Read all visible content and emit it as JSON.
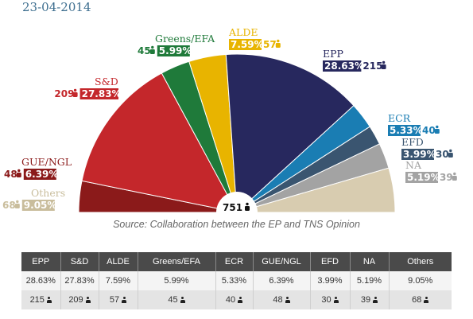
{
  "date": "23-04-2014",
  "source": "Source: Collaboration between the EP and TNS Opinion",
  "colors": {
    "GUE/NGL": "#8b1a1a",
    "S&D": "#c4272b",
    "Greens/EFA": "#1f7a3a",
    "ALDE": "#e8b400",
    "EPP": "#27285e",
    "ECR": "#1a7db3",
    "EFD": "#3a5570",
    "NA": "#a3a3a3",
    "Others": "#d8ccb0"
  },
  "chart_data": {
    "type": "pie",
    "total_seats": "751",
    "parties": [
      {
        "name": "GUE/NGL",
        "pct": "6.39%",
        "seats": "48",
        "value": 6.39
      },
      {
        "name": "S&D",
        "pct": "27.83%",
        "seats": "209",
        "value": 27.83
      },
      {
        "name": "Greens/EFA",
        "pct": "5.99%",
        "seats": "45",
        "value": 5.99
      },
      {
        "name": "ALDE",
        "pct": "7.59%",
        "seats": "57",
        "value": 7.59
      },
      {
        "name": "EPP",
        "pct": "28.63%",
        "seats": "215",
        "value": 28.63
      },
      {
        "name": "ECR",
        "pct": "5.33%",
        "seats": "40",
        "value": 5.33
      },
      {
        "name": "EFD",
        "pct": "3.99%",
        "seats": "30",
        "value": 3.99
      },
      {
        "name": "NA",
        "pct": "5.19%",
        "seats": "39",
        "value": 5.19
      },
      {
        "name": "Others",
        "pct": "9.05%",
        "seats": "68",
        "value": 9.05
      }
    ]
  },
  "table": {
    "headers": [
      "EPP",
      "S&D",
      "ALDE",
      "Greens/EFA",
      "ECR",
      "GUE/NGL",
      "EFD",
      "NA",
      "Others"
    ],
    "pct_row": [
      "28.63%",
      "27.83%",
      "7.59%",
      "5.99%",
      "5.33%",
      "6.39%",
      "3.99%",
      "5.19%",
      "9.05%"
    ],
    "seats_row": [
      "215",
      "209",
      "57",
      "45",
      "40",
      "48",
      "30",
      "39",
      "68"
    ]
  }
}
